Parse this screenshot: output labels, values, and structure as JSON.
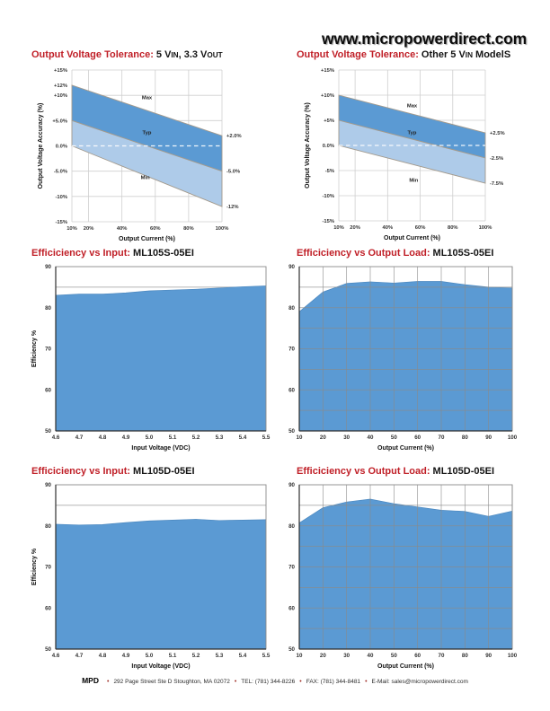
{
  "header": {
    "site": "www.micropowerdirect.com"
  },
  "footer": {
    "brand": "MPD",
    "separator": "•",
    "items": [
      "292 Page Street Ste D Stoughton, MA 02072",
      "TEL: (781) 344-8226",
      "FAX: (781) 344-8481",
      "E-Mail: sales@micropowerdirect.com"
    ]
  },
  "colors": {
    "title_red": "#c01f27",
    "band_dark": "#5b9ad3",
    "band_light": "#aecbe9",
    "band_stroke": "#a39a8d",
    "area_fill": "#5b9ad3",
    "area_edge": "#4c88bf",
    "grid_light": "#cfcfcf",
    "grid_dark": "#8a8a8a",
    "axis_dark": "#2f2f2f",
    "tick_text": "#333333"
  },
  "chart_data": [
    {
      "type": "band",
      "title_red": "Output Voltage Tolerance:",
      "title_black": [
        [
          "5 V"
        ],
        [
          "IN",
          1
        ],
        [
          ", 3.3 V"
        ],
        [
          "OUT",
          1
        ]
      ],
      "xlabel": "Output Current (%)",
      "ylabel": "Output Voltage Accuracy (%)",
      "xlim": [
        10,
        100
      ],
      "ylim": [
        -15,
        15
      ],
      "series": {
        "max": [
          12,
          2
        ],
        "typ": [
          5,
          -5
        ],
        "min": [
          0,
          -12
        ]
      },
      "yticks": [
        {
          "v": 15,
          "l": "+15%"
        },
        {
          "v": 10,
          "l": "+10%"
        },
        {
          "v": 5,
          "l": "+5.0%"
        },
        {
          "v": 0,
          "l": "0.0%"
        },
        {
          "v": -5,
          "l": "-5.0%"
        },
        {
          "v": -10,
          "l": "-10%"
        },
        {
          "v": -15,
          "l": "-15%"
        }
      ],
      "xticks": [
        {
          "v": 10,
          "l": "10%"
        },
        {
          "v": 20,
          "l": "20%"
        },
        {
          "v": 40,
          "l": "40%"
        },
        {
          "v": 60,
          "l": "60%"
        },
        {
          "v": 80,
          "l": "80%"
        },
        {
          "v": 100,
          "l": "100%"
        }
      ],
      "left_annotations": [
        {
          "v": 12,
          "l": "+12%"
        }
      ],
      "right_annotations": [
        {
          "v": 2,
          "l": "+2.0%"
        },
        {
          "v": -5,
          "l": "-5.0%"
        },
        {
          "v": -12,
          "l": "-12%"
        }
      ],
      "band_labels": [
        {
          "l": "Max",
          "x": 55,
          "y": 9.2
        },
        {
          "l": "Typ",
          "x": 55,
          "y": 2.3
        },
        {
          "l": "Min",
          "x": 54,
          "y": -6.6
        }
      ],
      "zero_line_dashed": true
    },
    {
      "type": "band",
      "title_red": "Output Voltage Tolerance:",
      "title_black": [
        [
          "Other 5 V"
        ],
        [
          "IN",
          1
        ],
        [
          " ModelS"
        ]
      ],
      "xlabel": "Output Current (%)",
      "ylabel": "Output Voltage Accuracy (%)",
      "xlim": [
        10,
        100
      ],
      "ylim": [
        -15,
        15
      ],
      "series": {
        "max": [
          10,
          2.5
        ],
        "typ": [
          5,
          -2.5
        ],
        "min": [
          0,
          -7.5
        ]
      },
      "yticks": [
        {
          "v": 15,
          "l": "+15%"
        },
        {
          "v": 10,
          "l": "+10%"
        },
        {
          "v": 5,
          "l": "+5%"
        },
        {
          "v": 0,
          "l": "0.0%"
        },
        {
          "v": -5,
          "l": "-5%"
        },
        {
          "v": -10,
          "l": "-10%"
        },
        {
          "v": -15,
          "l": "-15%"
        }
      ],
      "xticks": [
        {
          "v": 10,
          "l": "10%"
        },
        {
          "v": 20,
          "l": "20%"
        },
        {
          "v": 40,
          "l": "40%"
        },
        {
          "v": 60,
          "l": "60%"
        },
        {
          "v": 80,
          "l": "80%"
        },
        {
          "v": 100,
          "l": "100%"
        }
      ],
      "left_annotations": [],
      "right_annotations": [
        {
          "v": 2.5,
          "l": "+2.5%"
        },
        {
          "v": -2.5,
          "l": "-2.5%"
        },
        {
          "v": -7.5,
          "l": "-7.5%"
        }
      ],
      "band_labels": [
        {
          "l": "Max",
          "x": 55,
          "y": 7.6
        },
        {
          "l": "Typ",
          "x": 55,
          "y": 2.2
        },
        {
          "l": "Min",
          "x": 56,
          "y": -7.2
        }
      ],
      "zero_line_dashed": true
    },
    {
      "type": "area",
      "title_red": "Efficiciency vs Input:",
      "title_black": [
        [
          "ML105S-05EI"
        ]
      ],
      "xlabel": "Input Voltage (VDC)",
      "ylabel": "Efficiency %",
      "x": [
        4.6,
        4.7,
        4.8,
        4.9,
        5.0,
        5.1,
        5.2,
        5.3,
        5.4,
        5.5
      ],
      "y": [
        83.0,
        83.3,
        83.3,
        83.6,
        84.1,
        84.3,
        84.5,
        84.8,
        85.1,
        85.3
      ],
      "ylim": [
        50,
        90
      ],
      "yticks": [
        50,
        60,
        70,
        80,
        90
      ],
      "ygrid_step": 5,
      "xtick_labels": [
        "4.6",
        "4.7",
        "4.8",
        "4.9",
        "5.0",
        "5.1",
        "5.2",
        "5.3",
        "5.4",
        "5.5"
      ],
      "vgrid": false
    },
    {
      "type": "area",
      "title_red": "Efficiciency vs Output Load:",
      "title_black": [
        [
          "ML105S-05EI"
        ]
      ],
      "xlabel": "Output Current (%)",
      "ylabel": "Efficiency %",
      "x": [
        10,
        20,
        30,
        40,
        50,
        60,
        70,
        80,
        90,
        100
      ],
      "y": [
        79.0,
        83.8,
        85.9,
        86.3,
        86.0,
        86.4,
        86.4,
        85.6,
        85.0,
        84.8
      ],
      "ylim": [
        50,
        90
      ],
      "yticks": [
        50,
        60,
        70,
        80,
        90
      ],
      "ygrid_step": 5,
      "xtick_labels": [
        "10",
        "20",
        "30",
        "40",
        "50",
        "60",
        "70",
        "80",
        "90",
        "100"
      ],
      "vgrid": true
    },
    {
      "type": "area",
      "title_red": "Efficiciency vs Input:",
      "title_black": [
        [
          "ML105D-05EI"
        ]
      ],
      "xlabel": "Input Voltage (VDC)",
      "ylabel": "Efficiency %",
      "x": [
        4.6,
        4.7,
        4.8,
        4.9,
        5.0,
        5.1,
        5.2,
        5.3,
        5.4,
        5.5
      ],
      "y": [
        80.4,
        80.2,
        80.3,
        80.8,
        81.2,
        81.4,
        81.6,
        81.3,
        81.4,
        81.5
      ],
      "ylim": [
        50,
        90
      ],
      "yticks": [
        50,
        60,
        70,
        80,
        90
      ],
      "ygrid_step": 5,
      "xtick_labels": [
        "4.6",
        "4.7",
        "4.8",
        "4.9",
        "5.0",
        "5.1",
        "5.2",
        "5.3",
        "5.4",
        "5.5"
      ],
      "vgrid": false
    },
    {
      "type": "area",
      "title_red": "Efficiciency vs Output Load:",
      "title_black": [
        [
          "ML105D-05EI"
        ]
      ],
      "xlabel": "Output Current (%)",
      "ylabel": "Efficiency %",
      "x": [
        10,
        20,
        30,
        40,
        50,
        60,
        70,
        80,
        90,
        100
      ],
      "y": [
        80.7,
        84.4,
        85.8,
        86.5,
        85.4,
        84.6,
        83.8,
        83.5,
        82.3,
        83.6
      ],
      "ylim": [
        50,
        90
      ],
      "yticks": [
        50,
        60,
        70,
        80,
        90
      ],
      "ygrid_step": 5,
      "xtick_labels": [
        "10",
        "20",
        "30",
        "40",
        "50",
        "60",
        "70",
        "80",
        "90",
        "100"
      ],
      "vgrid": true
    }
  ]
}
